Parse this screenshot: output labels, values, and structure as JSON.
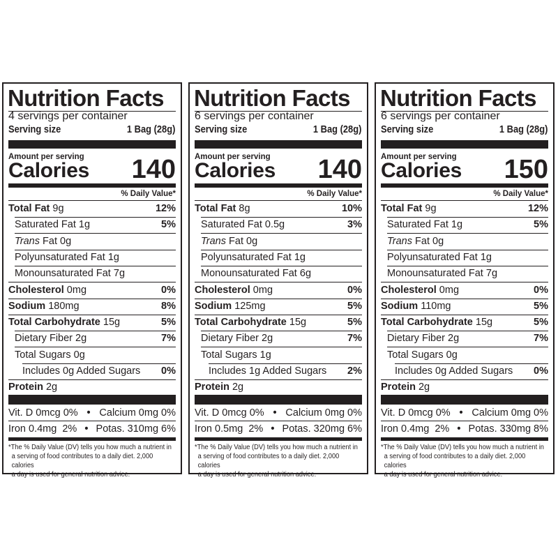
{
  "labels": [
    {
      "title": "Nutrition Facts",
      "servings_per_container": "4 servings per container",
      "serving_size_label": "Serving size",
      "serving_size_value": "1 Bag (28g)",
      "amount_per_serving": "Amount per serving",
      "calories_label": "Calories",
      "calories_value": "140",
      "daily_value_header": "% Daily Value*",
      "nutrients": [
        {
          "name": "Total Fat",
          "amount": "9g",
          "dv": "12%"
        },
        {
          "name": "Saturated Fat",
          "amount": "1g",
          "dv": "5%"
        },
        {
          "name": "Trans",
          "amount": "Fat 0g",
          "dv": ""
        },
        {
          "name": "Polyunsaturated Fat",
          "amount": "1g",
          "dv": ""
        },
        {
          "name": "Monounsaturated Fat",
          "amount": "7g",
          "dv": ""
        },
        {
          "name": "Cholesterol",
          "amount": "0mg",
          "dv": "0%"
        },
        {
          "name": "Sodium",
          "amount": "180mg",
          "dv": "8%"
        },
        {
          "name": "Total Carbohydrate",
          "amount": "15g",
          "dv": "5%"
        },
        {
          "name": "Dietary Fiber",
          "amount": "2g",
          "dv": "7%"
        },
        {
          "name": "Total Sugars",
          "amount": "0g",
          "dv": ""
        },
        {
          "name": "Includes 0g Added Sugars",
          "amount": "",
          "dv": "0%"
        },
        {
          "name": "Protein",
          "amount": "2g",
          "dv": ""
        }
      ],
      "vitamins": [
        {
          "left": "Vit. D 0mcg 0%",
          "sep": "•",
          "right": "Calcium 0mg 0%"
        },
        {
          "left": "Iron 0.4mg  2%",
          "sep": "•",
          "right": "Potas. 310mg 6%"
        }
      ],
      "footnote": [
        "*The % Daily Value (DV) tells you how much a nutrient in",
        "a serving of food contributes to a daily diet. 2,000 calories",
        "a day is used for general nutrition advice."
      ]
    },
    {
      "title": "Nutrition Facts",
      "servings_per_container": "6 servings per container",
      "serving_size_label": "Serving size",
      "serving_size_value": "1 Bag (28g)",
      "amount_per_serving": "Amount per serving",
      "calories_label": "Calories",
      "calories_value": "140",
      "daily_value_header": "% Daily Value*",
      "nutrients": [
        {
          "name": "Total Fat",
          "amount": "8g",
          "dv": "10%"
        },
        {
          "name": "Saturated Fat",
          "amount": "0.5g",
          "dv": "3%"
        },
        {
          "name": "Trans",
          "amount": "Fat 0g",
          "dv": ""
        },
        {
          "name": "Polyunsaturated Fat",
          "amount": "1g",
          "dv": ""
        },
        {
          "name": "Monounsaturated Fat",
          "amount": "6g",
          "dv": ""
        },
        {
          "name": "Cholesterol",
          "amount": "0mg",
          "dv": "0%"
        },
        {
          "name": "Sodium",
          "amount": "125mg",
          "dv": "5%"
        },
        {
          "name": "Total Carbohydrate",
          "amount": "15g",
          "dv": "5%"
        },
        {
          "name": "Dietary Fiber",
          "amount": "2g",
          "dv": "7%"
        },
        {
          "name": "Total Sugars",
          "amount": "1g",
          "dv": ""
        },
        {
          "name": "Includes 1g Added Sugars",
          "amount": "",
          "dv": "2%"
        },
        {
          "name": "Protein",
          "amount": "2g",
          "dv": ""
        }
      ],
      "vitamins": [
        {
          "left": "Vit. D 0mcg 0%",
          "sep": "•",
          "right": "Calcium 0mg 0%"
        },
        {
          "left": "Iron 0.5mg  2%",
          "sep": "•",
          "right": "Potas. 320mg 6%"
        }
      ],
      "footnote": [
        "*The % Daily Value (DV) tells you how much a nutrient in",
        "a serving of food contributes to a daily diet. 2,000 calories",
        "a day is used for general nutrition advice."
      ]
    },
    {
      "title": "Nutrition Facts",
      "servings_per_container": "6 servings per container",
      "serving_size_label": "Serving size",
      "serving_size_value": "1 Bag (28g)",
      "amount_per_serving": "Amount per serving",
      "calories_label": "Calories",
      "calories_value": "150",
      "daily_value_header": "% Daily Value*",
      "nutrients": [
        {
          "name": "Total Fat",
          "amount": "9g",
          "dv": "12%"
        },
        {
          "name": "Saturated Fat",
          "amount": "1g",
          "dv": "5%"
        },
        {
          "name": "Trans",
          "amount": "Fat 0g",
          "dv": ""
        },
        {
          "name": "Polyunsaturated Fat",
          "amount": "1g",
          "dv": ""
        },
        {
          "name": "Monounsaturated Fat",
          "amount": "7g",
          "dv": ""
        },
        {
          "name": "Cholesterol",
          "amount": "0mg",
          "dv": "0%"
        },
        {
          "name": "Sodium",
          "amount": "110mg",
          "dv": "5%"
        },
        {
          "name": "Total Carbohydrate",
          "amount": "15g",
          "dv": "5%"
        },
        {
          "name": "Dietary Fiber",
          "amount": "2g",
          "dv": "7%"
        },
        {
          "name": "Total Sugars",
          "amount": "0g",
          "dv": ""
        },
        {
          "name": "Includes 0g Added Sugars",
          "amount": "",
          "dv": "0%"
        },
        {
          "name": "Protein",
          "amount": "2g",
          "dv": ""
        }
      ],
      "vitamins": [
        {
          "left": "Vit. D 0mcg 0%",
          "sep": "•",
          "right": "Calcium 0mg 0%"
        },
        {
          "left": "Iron 0.4mg  2%",
          "sep": "•",
          "right": "Potas. 330mg 8%"
        }
      ],
      "footnote": [
        "*The % Daily Value (DV) tells you how much a nutrient in",
        "a serving of food contributes to a daily diet. 2,000 calories",
        "a day is used for general nutrition advice."
      ]
    }
  ]
}
